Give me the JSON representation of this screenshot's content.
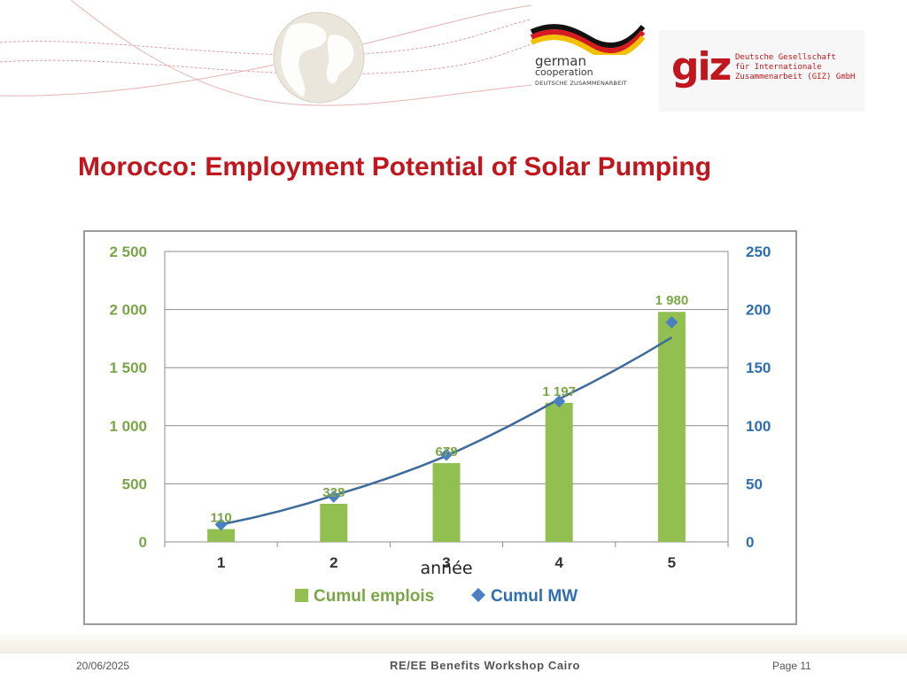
{
  "slide": {
    "title": "Morocco: Employment Potential of Solar Pumping",
    "footer_date": "20/06/2025",
    "footer_center": "RE/EE Benefits Workshop Cairo",
    "footer_page": "Page 11"
  },
  "logos": {
    "german_cooperation": {
      "line1": "german",
      "line2": "cooperation",
      "line3": "DEUTSCHE ZUSAMMENARBEIT"
    },
    "giz": {
      "mark": "giz",
      "name_lines": [
        "Deutsche Gesellschaft",
        "für Internationale",
        "Zusammenarbeit (GIZ) GmbH"
      ]
    }
  },
  "colors": {
    "title": "#c0161d",
    "bar": "#92c050",
    "line": "#3e6b9c",
    "marker": "#4a7fc1",
    "left_axis_labels": "#7aa648",
    "right_axis_labels": "#2f6eb0"
  },
  "chart_data": {
    "type": "bar",
    "categories": [
      "1",
      "2",
      "3",
      "4",
      "5"
    ],
    "xlabel": "année",
    "series": [
      {
        "name": "Cumul emplois",
        "type": "bar",
        "axis": "left",
        "values": [
          110,
          328,
          678,
          1197,
          1980
        ],
        "labels": [
          "110",
          "328",
          "678",
          "1 197",
          "1 980"
        ]
      },
      {
        "name": "Cumul MW",
        "type": "scatter",
        "marker": "diamond",
        "axis": "right",
        "values": [
          15,
          39,
          75,
          121,
          189
        ]
      }
    ],
    "trendline": {
      "type": "polynomial",
      "series": "Cumul MW",
      "y_at": [
        15,
        40,
        74,
        123,
        176
      ]
    },
    "ylim_left": [
      0,
      2500
    ],
    "yticks_left": [
      0,
      500,
      1000,
      1500,
      2000,
      2500
    ],
    "yticklabels_left": [
      "0",
      "500",
      "1 000",
      "1 500",
      "2 000",
      "2 500"
    ],
    "ylim_right": [
      0,
      250
    ],
    "yticks_right": [
      0,
      50,
      100,
      150,
      200,
      250
    ],
    "yticklabels_right": [
      "0",
      "50",
      "100",
      "150",
      "200",
      "250"
    ],
    "grid": true,
    "legend": "bottom"
  }
}
